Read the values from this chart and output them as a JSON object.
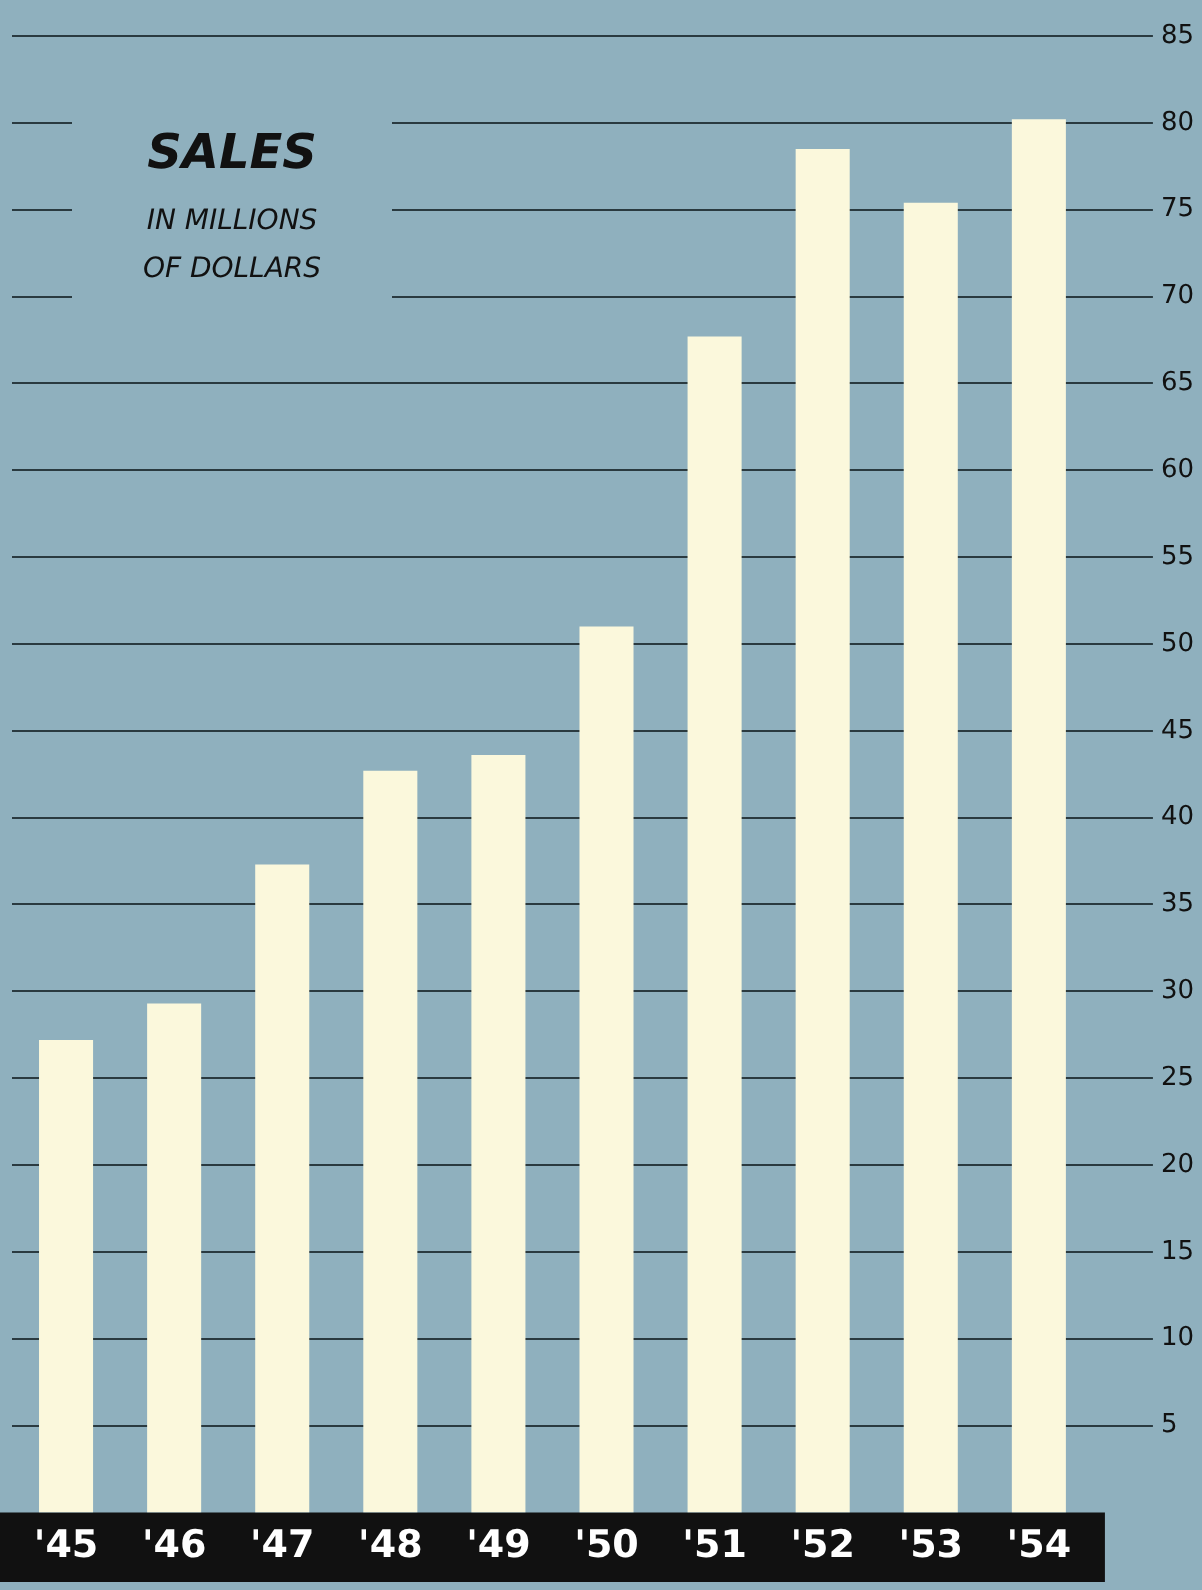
{
  "chart_data": {
    "type": "bar",
    "title": "SALES",
    "subtitle": "IN MILLIONS\nOF DOLLARS",
    "categories": [
      "'45",
      "'46",
      "'47",
      "'48",
      "'49",
      "'50",
      "'51",
      "'52",
      "'53",
      "'54"
    ],
    "values": [
      27.2,
      29.3,
      37.3,
      42.7,
      43.6,
      51.0,
      67.7,
      78.5,
      75.4,
      80.2
    ],
    "color": "#fbf8dc",
    "ylim": [
      0,
      85
    ],
    "yticks": [
      5,
      10,
      15,
      20,
      25,
      30,
      35,
      40,
      45,
      50,
      55,
      60,
      65,
      70,
      75,
      80,
      85
    ],
    "grid": "y",
    "legend": false
  }
}
